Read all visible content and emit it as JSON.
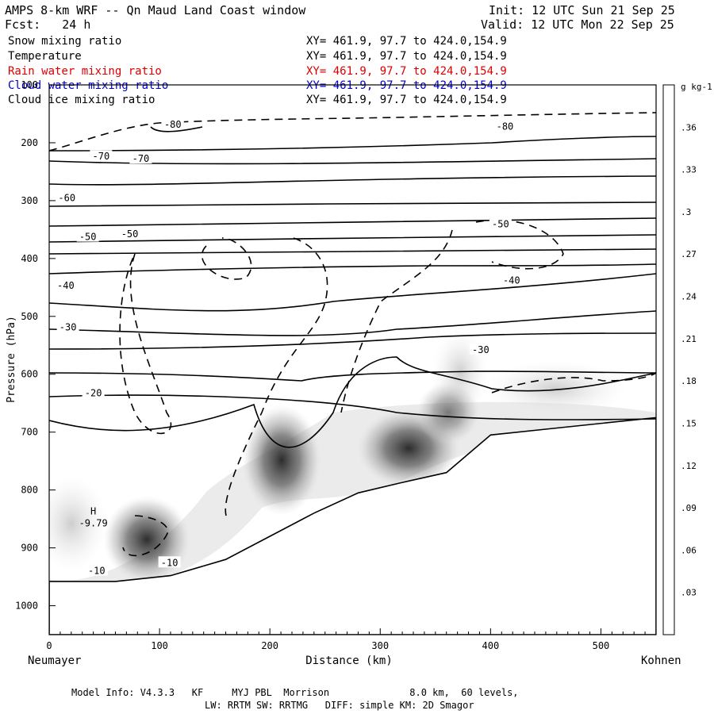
{
  "header": {
    "title": "AMPS 8-km WRF -- Qn Maud Land Coast window",
    "init": "Init: 12 UTC Sun 21 Sep 25",
    "fcst": "Fcst:   24 h",
    "valid": "Valid: 12 UTC Mon 22 Sep 25"
  },
  "legend": [
    {
      "label": "Snow mixing ratio",
      "xy": "XY= 461.9, 97.7 to 424.0,154.9",
      "color": "#000000"
    },
    {
      "label": "Temperature",
      "xy": "XY= 461.9, 97.7 to 424.0,154.9",
      "color": "#000000"
    },
    {
      "label": "Rain water mixing ratio",
      "xy": "XY= 461.9, 97.7 to 424.0,154.9",
      "color": "#dd0000"
    },
    {
      "label": "Cloud water mixing ratio",
      "xy": "XY= 461.9, 97.7 to 424.0,154.9",
      "color": "#0000cc"
    },
    {
      "label": "Cloud ice mixing ratio",
      "xy": "XY= 461.9, 97.7 to 424.0,154.9",
      "color": "#000000"
    }
  ],
  "chart_data": {
    "type": "heatmap",
    "xlabel": "Distance (km)",
    "ylabel": "Pressure (hPa)",
    "xlim": [
      0,
      550
    ],
    "ylim": [
      1050,
      100
    ],
    "x_ticks": [
      "0",
      "100",
      "200",
      "300",
      "400",
      "500"
    ],
    "x_tick_values": [
      0,
      100,
      200,
      300,
      400,
      500
    ],
    "y_ticks": [
      "100",
      "200",
      "300",
      "400",
      "500",
      "600",
      "700",
      "800",
      "900",
      "1000"
    ],
    "y_tick_values": [
      100,
      200,
      300,
      400,
      500,
      600,
      700,
      800,
      900,
      1000
    ],
    "left_station": "Neumayer",
    "right_station": "Kohnen",
    "colorbar_unit": "g kg-1",
    "colorbar_labels": [
      ".03",
      ".06",
      ".09",
      ".12",
      ".15",
      ".18",
      ".21",
      ".24",
      ".27",
      ".3",
      ".33",
      ".36"
    ],
    "colorbar_range": [
      0,
      0.39
    ],
    "terrain": [
      [
        0,
        958
      ],
      [
        60,
        958
      ],
      [
        110,
        948
      ],
      [
        160,
        920
      ],
      [
        200,
        880
      ],
      [
        240,
        840
      ],
      [
        280,
        805
      ],
      [
        320,
        787
      ],
      [
        360,
        770
      ],
      [
        400,
        705
      ],
      [
        450,
        695
      ],
      [
        550,
        675
      ]
    ],
    "temperature_labels": [
      {
        "text": "-80",
        "x": 112,
        "p": 170
      },
      {
        "text": "-80",
        "x": 413,
        "p": 173
      },
      {
        "text": "-70",
        "x": 47,
        "p": 225
      },
      {
        "text": "-70",
        "x": 83,
        "p": 229
      },
      {
        "text": "-60",
        "x": 16,
        "p": 297
      },
      {
        "text": "-50",
        "x": 35,
        "p": 364
      },
      {
        "text": "-50",
        "x": 73,
        "p": 359
      },
      {
        "text": "-50",
        "x": 409,
        "p": 342
      },
      {
        "text": "-40",
        "x": 15,
        "p": 448
      },
      {
        "text": "-40",
        "x": 419,
        "p": 439
      },
      {
        "text": "-30",
        "x": 17,
        "p": 520
      },
      {
        "text": "-30",
        "x": 391,
        "p": 559
      },
      {
        "text": "-20",
        "x": 40,
        "p": 634
      },
      {
        "text": "-10",
        "x": 43,
        "p": 941
      },
      {
        "text": "-10",
        "x": 109,
        "p": 927
      }
    ],
    "high_marker": {
      "letter": "H",
      "value": "-9.79",
      "x": 40,
      "p": 848
    }
  },
  "footer": {
    "line1": "Model Info: V4.3.3   KF     MYJ PBL  Morrison              8.0 km,  60 levels,",
    "line2": "LW: RRTM SW: RRTMG   DIFF: simple KM: 2D Smagor"
  }
}
